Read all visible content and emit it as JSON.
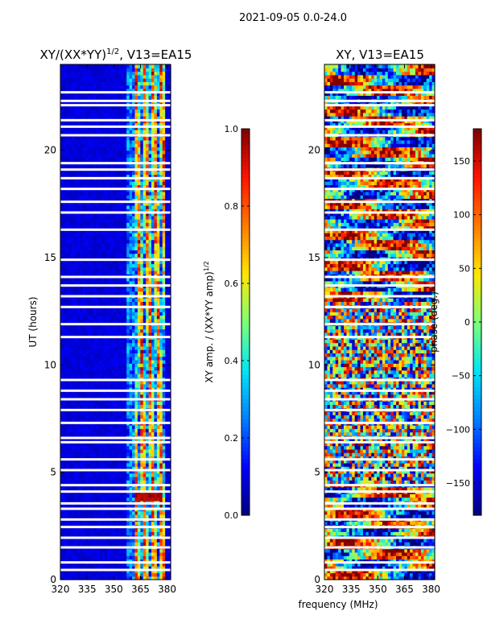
{
  "suptitle": "2021-09-05 0.0-24.0",
  "shared_xlabel": "frequency (MHz)",
  "colors": {
    "jet": [
      "#00007f",
      "#0000ff",
      "#0080ff",
      "#00e5f5",
      "#7dff7a",
      "#ffe600",
      "#ff7a00",
      "#ff1400",
      "#7f0000"
    ],
    "background": "#ffffff"
  },
  "chart_data": [
    {
      "type": "heatmap",
      "title_main": "XY/(XX*YY)",
      "title_sup": "1/2",
      "title_rest": ", V13=EA15",
      "xlabel": "",
      "ylabel": "UT (hours)",
      "xlim": [
        320,
        382
      ],
      "ylim": [
        0,
        24
      ],
      "xticks": [
        320,
        335,
        350,
        365,
        380
      ],
      "yticks": [
        0,
        5,
        10,
        15,
        20
      ],
      "pattern": "amplitude",
      "colorbar": {
        "label_main": "XY amp. / (XX*YY amp)",
        "label_sup": "1/2",
        "range": [
          0.0,
          1.0
        ],
        "ticks": [
          "0.0",
          "0.2",
          "0.4",
          "0.6",
          "0.8",
          "1.0"
        ]
      }
    },
    {
      "type": "heatmap",
      "title_main": "XY, V13=EA15",
      "title_sup": "",
      "title_rest": "",
      "xlabel": "frequency (MHz)",
      "ylabel": "",
      "xlim": [
        320,
        382
      ],
      "ylim": [
        0,
        24
      ],
      "xticks": [
        320,
        335,
        350,
        365,
        380
      ],
      "yticks": [
        0,
        5,
        10,
        15,
        20
      ],
      "pattern": "phase",
      "colorbar": {
        "label_main": "phase (deg.)",
        "label_sup": "",
        "range": [
          -180,
          180
        ],
        "ticks": [
          "−150",
          "−100",
          "−50",
          "0",
          "50",
          "100",
          "150"
        ]
      }
    }
  ],
  "flagged_gaps_hours": [
    0.45,
    0.8,
    1.5,
    1.95,
    2.45,
    2.8,
    3.3,
    3.55,
    4.1,
    4.4,
    5.1,
    5.6,
    6.4,
    6.6,
    7.3,
    7.9,
    8.4,
    8.8,
    9.3,
    11.3,
    11.9,
    12.7,
    13.2,
    13.7,
    14.1,
    14.9,
    16.3,
    17.1,
    17.6,
    18.2,
    18.7,
    19.1,
    19.4,
    20.7,
    21.1,
    21.4,
    22.1,
    22.3,
    22.7
  ]
}
